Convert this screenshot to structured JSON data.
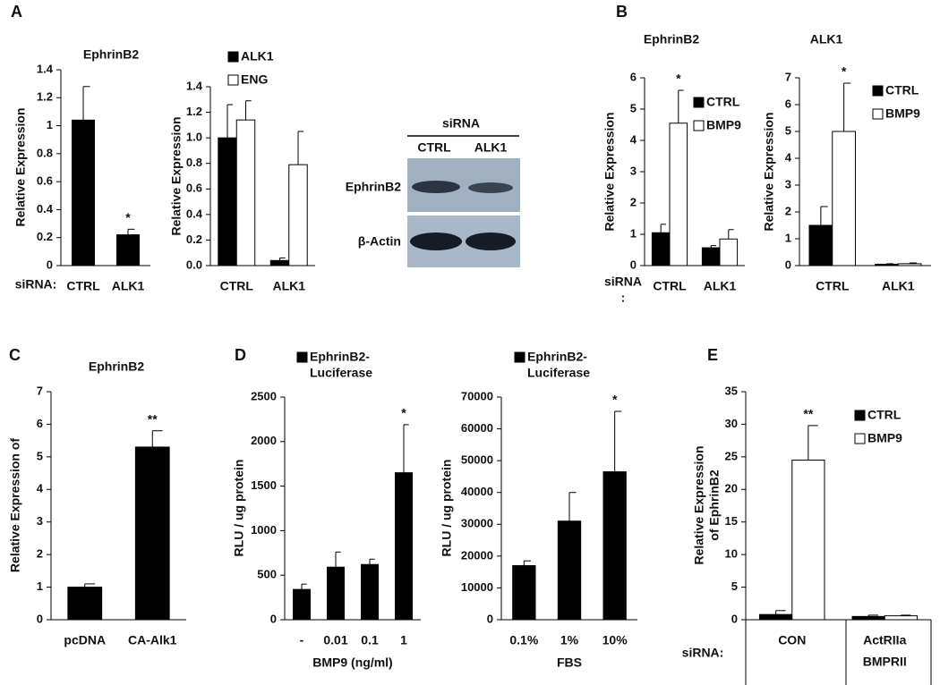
{
  "panels": [
    "A",
    "B",
    "C",
    "D",
    "E"
  ],
  "blot": {
    "header": "siRNA",
    "lanes": [
      "CTRL",
      "ALK1"
    ],
    "rows": [
      "EphrinB2",
      "β-Actin"
    ]
  },
  "chart_data": [
    {
      "type": "bar",
      "title": "EphrinB2",
      "ylabel": "Relative Expression",
      "xlabel": "siRNA:",
      "categories": [
        "CTRL",
        "ALK1"
      ],
      "values": [
        1.04,
        0.22
      ],
      "errors": [
        0.24,
        0.04
      ],
      "significance": [
        null,
        "*"
      ],
      "color": "#000000",
      "ylim": [
        0,
        1.4
      ],
      "yticks": [
        0,
        0.2,
        0.4,
        0.6,
        0.8,
        1,
        1.2,
        1.4
      ]
    },
    {
      "type": "bar",
      "ylabel": "Relative Expression",
      "categories": [
        "CTRL",
        "ALK1"
      ],
      "series": [
        {
          "name": "ALK1",
          "color": "#000000",
          "values": [
            1.0,
            0.04
          ],
          "errors": [
            0.26,
            0.02
          ]
        },
        {
          "name": "ENG",
          "color": "#ffffff",
          "values": [
            1.14,
            0.79
          ],
          "errors": [
            0.15,
            0.26
          ]
        }
      ],
      "ylim": [
        0,
        1.4
      ],
      "yticks": [
        {
          "value": 0,
          "label": "0.0"
        },
        0.2,
        0.4,
        0.6,
        0.8,
        {
          "value": 1,
          "label": "1.0"
        },
        1.2,
        1.4
      ]
    },
    {
      "type": "bar",
      "title": "EphrinB2",
      "ylabel": "Relative Expression",
      "xlabel": [
        "siRNA",
        ":"
      ],
      "categories": [
        "CTRL",
        "ALK1"
      ],
      "series": [
        {
          "name": "CTRL",
          "color": "#000000",
          "values": [
            1.05,
            0.57
          ],
          "errors": [
            0.27,
            0.07
          ]
        },
        {
          "name": "BMP9",
          "color": "#ffffff",
          "values": [
            4.55,
            0.85
          ],
          "errors": [
            1.05,
            0.3
          ],
          "significance": [
            "*",
            null
          ]
        }
      ],
      "ylim": [
        0,
        6
      ],
      "yticks": [
        0,
        1,
        2,
        3,
        4,
        5,
        6
      ]
    },
    {
      "type": "bar",
      "title": "ALK1",
      "ylabel": "Relative Expression",
      "categories": [
        "CTRL",
        "ALK1"
      ],
      "series": [
        {
          "name": "CTRL",
          "color": "#000000",
          "values": [
            1.5,
            0.05
          ],
          "errors": [
            0.7,
            0.02
          ]
        },
        {
          "name": "BMP9",
          "color": "#ffffff",
          "values": [
            5.0,
            0.07
          ],
          "errors": [
            1.8,
            0.03
          ],
          "significance": [
            "*",
            null
          ]
        }
      ],
      "ylim": [
        0,
        7
      ],
      "yticks": [
        0,
        1,
        2,
        3,
        4,
        5,
        6,
        7
      ]
    },
    {
      "type": "bar",
      "title": "EphrinB2",
      "ylabel": "Relative Expression of",
      "categories": [
        "pcDNA",
        "CA-Alk1"
      ],
      "values": [
        1.0,
        5.3
      ],
      "errors": [
        0.1,
        0.5
      ],
      "significance": [
        null,
        "**"
      ],
      "color": "#000000",
      "ylim": [
        0,
        7
      ],
      "yticks": [
        0,
        1,
        2,
        3,
        4,
        5,
        6,
        7
      ]
    },
    {
      "type": "bar",
      "ylabel": "RLU / ug protein",
      "xlabel": "BMP9 (ng/ml)",
      "categories": [
        "-",
        "0.01",
        "0.1",
        "1"
      ],
      "series": [
        {
          "name": [
            "EphrinB2-",
            "Luciferase"
          ],
          "color": "#000000",
          "values": [
            340,
            590,
            620,
            1650
          ],
          "errors": [
            60,
            170,
            60,
            540
          ],
          "significance": [
            null,
            null,
            null,
            "*"
          ]
        }
      ],
      "ylim": [
        0,
        2500
      ],
      "yticks": [
        0,
        500,
        1000,
        1500,
        2000,
        2500
      ]
    },
    {
      "type": "bar",
      "ylabel": "RLU / ug protein",
      "xlabel": "FBS",
      "categories": [
        "0.1%",
        "1%",
        "10%"
      ],
      "series": [
        {
          "name": [
            "EphrinB2-",
            "Luciferase"
          ],
          "color": "#000000",
          "values": [
            17000,
            31000,
            46500
          ],
          "errors": [
            1500,
            9000,
            19000
          ],
          "significance": [
            null,
            null,
            "*"
          ]
        }
      ],
      "ylim": [
        0,
        70000
      ],
      "yticks": [
        0,
        10000,
        20000,
        30000,
        40000,
        50000,
        60000,
        70000
      ]
    },
    {
      "type": "bar",
      "ylabel": [
        "Relative Expression",
        "of EphrinB2"
      ],
      "xlabel": "siRNA:",
      "categories": [
        "CON",
        [
          "ActRIIa",
          "BMPRII"
        ]
      ],
      "series": [
        {
          "name": "CTRL",
          "color": "#000000",
          "values": [
            0.8,
            0.5
          ],
          "errors": [
            0.6,
            0.2
          ]
        },
        {
          "name": "BMP9",
          "color": "#ffffff",
          "values": [
            24.5,
            0.6
          ],
          "errors": [
            5.3,
            0.1
          ],
          "significance": [
            "**",
            null
          ]
        }
      ],
      "ylim": [
        0,
        35
      ],
      "yticks": [
        0,
        5,
        10,
        15,
        20,
        25,
        30,
        35
      ]
    }
  ]
}
